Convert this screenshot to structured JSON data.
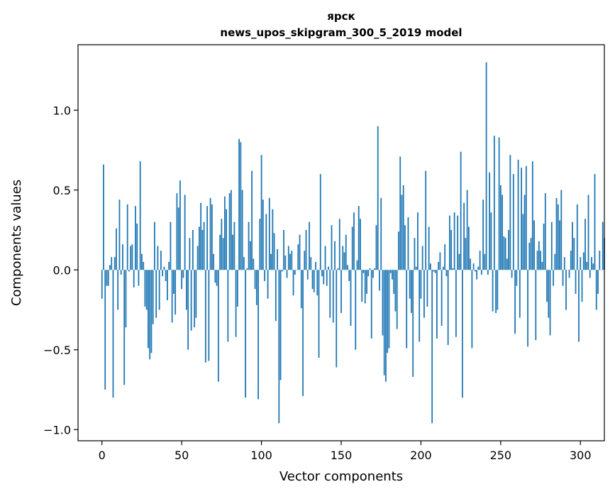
{
  "chart_data": {
    "type": "bar",
    "title_line1": "ярск",
    "title_line2": "news_upos_skipgram_300_5_2019 model",
    "xlabel": "Vector components",
    "ylabel": "Components values",
    "xlim": [
      -15,
      315
    ],
    "ylim": [
      -1.07,
      1.41
    ],
    "x_ticks": [
      0,
      50,
      100,
      150,
      200,
      250,
      300
    ],
    "x_tick_labels": [
      "0",
      "50",
      "100",
      "150",
      "200",
      "250",
      "300"
    ],
    "y_ticks": [
      -1.0,
      -0.5,
      0.0,
      0.5,
      1.0
    ],
    "y_tick_labels": [
      "−1.0",
      "−0.5",
      "0.0",
      "0.5",
      "1.0"
    ],
    "bar_color": "#1f77b4",
    "grid": false,
    "series": [
      {
        "values": [
          -0.18,
          0.66,
          -0.75,
          -0.1,
          -0.1,
          0.03,
          0.08,
          -0.8,
          0.08,
          0.26,
          -0.25,
          0.44,
          -0.03,
          0.16,
          -0.72,
          -0.36,
          0.41,
          -0.01,
          0.15,
          0.16,
          -0.11,
          0.4,
          0.29,
          -0.1,
          0.68,
          0.1,
          0.05,
          -0.23,
          -0.25,
          -0.49,
          -0.56,
          -0.52,
          -0.34,
          0.3,
          -0.3,
          0.15,
          -0.25,
          0.12,
          -0.04,
          0.02,
          -0.07,
          -0.19,
          0.05,
          0.3,
          -0.33,
          -0.15,
          -0.28,
          0.48,
          0.39,
          0.56,
          -0.12,
          -0.05,
          0.47,
          -0.25,
          -0.5,
          0.2,
          -0.38,
          0.25,
          -0.36,
          -0.3,
          0.15,
          0.27,
          0.42,
          0.25,
          0.3,
          -0.58,
          0.4,
          -0.57,
          0.45,
          0.41,
          0.1,
          -0.08,
          -0.1,
          -0.7,
          0.22,
          0.32,
          0.2,
          0.46,
          0.38,
          -0.45,
          0.48,
          0.5,
          0.22,
          0.3,
          -0.42,
          -0.23,
          0.82,
          0.8,
          0.5,
          0.08,
          -0.8,
          0.01,
          0.3,
          0.18,
          0.62,
          0.07,
          -0.12,
          -0.22,
          -0.81,
          0.32,
          0.72,
          0.44,
          -0.07,
          0.35,
          -0.18,
          0.45,
          0.1,
          0.38,
          0.23,
          -0.32,
          0.13,
          -0.96,
          -0.69,
          -0.01,
          0.25,
          0.09,
          -0.05,
          0.15,
          0.1,
          0.12,
          -0.16,
          -0.03,
          0.0,
          0.16,
          0.22,
          -0.24,
          -0.79,
          0.12,
          0.25,
          -0.06,
          0.3,
          0.08,
          -0.12,
          -0.14,
          0.05,
          -0.16,
          -0.55,
          0.6,
          -0.04,
          -0.09,
          0.15,
          -0.1,
          0.02,
          -0.3,
          0.28,
          -0.33,
          0.18,
          -0.61,
          0.01,
          0.32,
          -0.27,
          0.15,
          0.11,
          0.22,
          0.03,
          -0.07,
          -0.35,
          0.27,
          0.36,
          -0.5,
          0.06,
          0.4,
          0.32,
          -0.2,
          -0.02,
          -0.21,
          -0.15,
          -0.04,
          0.01,
          -0.43,
          -0.05,
          0.01,
          0.28,
          0.9,
          -0.13,
          0.45,
          -0.41,
          -0.66,
          -0.7,
          -0.52,
          -0.49,
          -0.02,
          -0.06,
          -0.15,
          -0.26,
          -0.37,
          0.24,
          0.71,
          0.47,
          0.53,
          0.28,
          -0.49,
          0.33,
          -0.18,
          -0.27,
          -0.67,
          0.2,
          0.02,
          0.36,
          -0.45,
          -0.18,
          0.15,
          -0.3,
          0.62,
          -0.23,
          0.27,
          0.04,
          -0.96,
          -0.01,
          -0.02,
          -0.43,
          0.05,
          0.11,
          -0.35,
          0.02,
          0.16,
          -0.04,
          -0.47,
          0.34,
          0.25,
          0.01,
          0.36,
          -0.42,
          0.34,
          0.1,
          0.74,
          -0.8,
          0.42,
          0.2,
          0.5,
          0.27,
          0.07,
          -0.49,
          0.04,
          -0.01,
          -0.06,
          0.02,
          0.12,
          -0.03,
          0.44,
          0.1,
          1.3,
          -0.03,
          0.61,
          0.36,
          -0.26,
          0.84,
          -0.27,
          -0.25,
          0.83,
          0.53,
          0.47,
          0.21,
          0.2,
          0.07,
          0.25,
          0.72,
          -0.05,
          0.6,
          -0.4,
          -0.1,
          0.69,
          -0.3,
          0.64,
          0.35,
          0.47,
          0.65,
          -0.48,
          0.17,
          0.2,
          0.68,
          0.31,
          -0.44,
          0.12,
          0.18,
          0.12,
          0.05,
          0.29,
          0.48,
          -0.2,
          -0.3,
          -0.41,
          0.3,
          -0.1,
          0.1,
          0.45,
          0.41,
          0.31,
          0.5,
          -0.1,
          0.08,
          -0.25,
          0.0,
          -0.05,
          0.12,
          0.3,
          0.2,
          -0.15,
          0.41,
          -0.45,
          0.08,
          -0.2,
          0.11,
          0.32,
          0.05,
          0.47,
          -0.05,
          0.08,
          0.04,
          0.6,
          -0.25,
          -0.15,
          0.12,
          0.0,
          0.3,
          0.2
        ]
      }
    ]
  }
}
